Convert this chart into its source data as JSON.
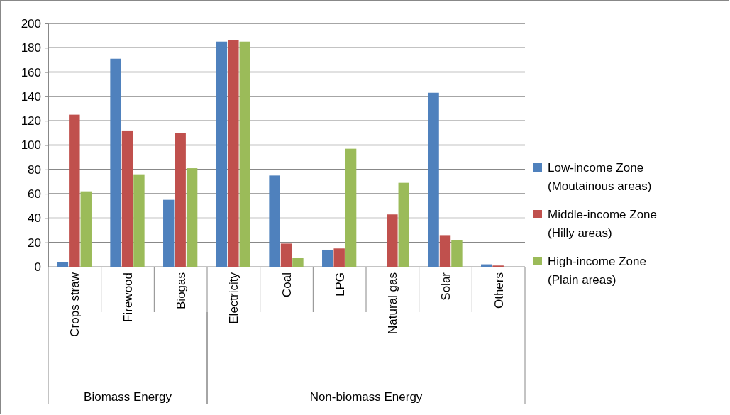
{
  "chart_data": {
    "type": "bar",
    "categories": [
      "Crops straw",
      "Firewood",
      "Biogas",
      "Electricity",
      "Coal",
      "LPG",
      "Natural gas",
      "Solar",
      "Others"
    ],
    "series": [
      {
        "name": "Low-income Zone (Moutainous areas)",
        "color": "#4f81bd",
        "values": [
          4,
          171,
          55,
          185,
          75,
          14,
          null,
          143,
          2
        ]
      },
      {
        "name": "Middle-income Zone (Hilly areas)",
        "color": "#c0504d",
        "values": [
          125,
          112,
          110,
          186,
          19,
          15,
          43,
          26,
          1
        ]
      },
      {
        "name": "High-income Zone (Plain areas)",
        "color": "#9bbb59",
        "values": [
          62,
          76,
          81,
          185,
          7,
          97,
          69,
          22,
          null
        ]
      }
    ],
    "ylim": [
      0,
      200
    ],
    "yticks": [
      0,
      20,
      40,
      60,
      80,
      100,
      120,
      140,
      160,
      180,
      200
    ],
    "grid": "y",
    "legend": "right",
    "annotations": [
      "Biomass Energy",
      "Non-biomass Energy"
    ]
  }
}
